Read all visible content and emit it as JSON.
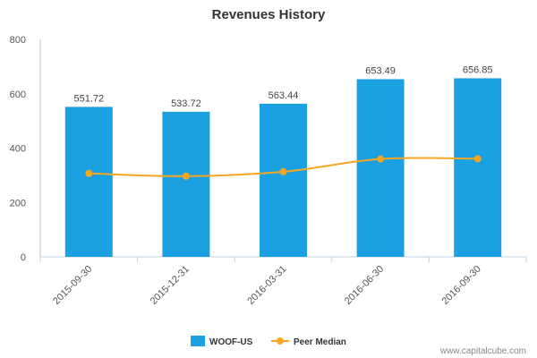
{
  "chart_data": {
    "type": "bar",
    "title": "Revenues History",
    "xlabel": "",
    "ylabel": "",
    "categories": [
      "2015-09-30",
      "2015-12-31",
      "2016-03-31",
      "2016-06-30",
      "2016-09-30"
    ],
    "series": [
      {
        "name": "WOOF-US",
        "type": "bar",
        "values": [
          551.72,
          533.72,
          563.44,
          653.49,
          656.85
        ],
        "value_labels": [
          "551.72",
          "533.72",
          "563.44",
          "653.49",
          "656.85"
        ],
        "color": "#1ba1e2"
      },
      {
        "name": "Peer Median",
        "type": "line",
        "values": [
          307,
          297,
          313,
          360,
          361
        ],
        "color": "#f5a623"
      }
    ],
    "ylim": [
      0,
      800
    ],
    "yticks": [
      0,
      200,
      400,
      600,
      800
    ],
    "grid": false,
    "legend_position": "bottom"
  },
  "credit": "www.capitalcube.com"
}
